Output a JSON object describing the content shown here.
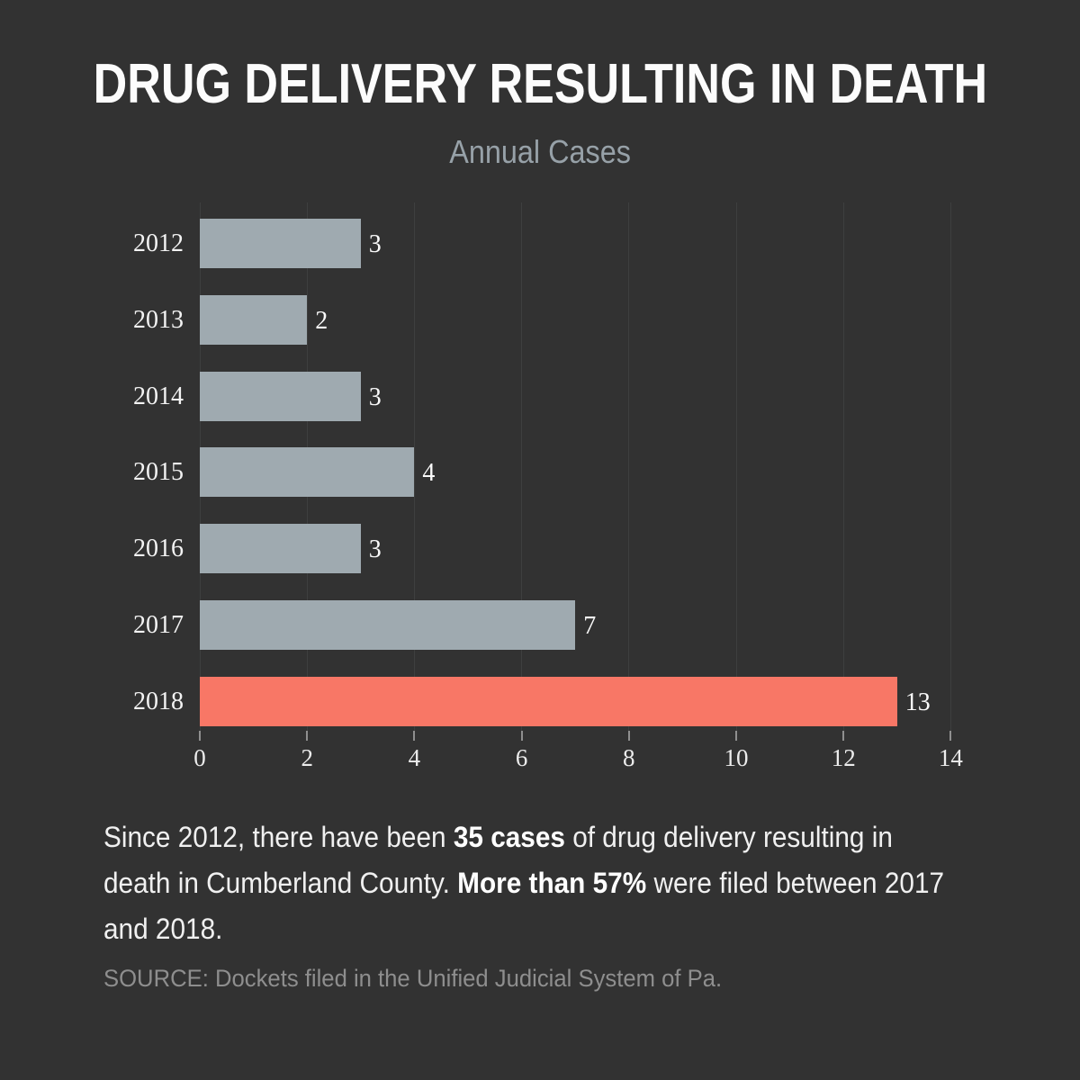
{
  "title": "DRUG DELIVERY RESULTING IN DEATH",
  "subtitle": "Annual Cases",
  "chart_data": {
    "type": "bar",
    "orientation": "horizontal",
    "title": "DRUG DELIVERY RESULTING IN DEATH",
    "subtitle": "Annual Cases",
    "categories": [
      "2012",
      "2013",
      "2014",
      "2015",
      "2016",
      "2017",
      "2018"
    ],
    "values": [
      3,
      2,
      3,
      4,
      3,
      7,
      13
    ],
    "value_labels": [
      "3",
      "2",
      "3",
      "4",
      "3",
      "7",
      "13"
    ],
    "highlight_index": 6,
    "xticks": [
      0,
      2,
      4,
      6,
      8,
      10,
      12,
      14
    ],
    "xlim": [
      0,
      14
    ],
    "grid": true,
    "legend": false,
    "bar_color": "#9faab0",
    "highlight_color": "#f87766"
  },
  "caption": {
    "lines": [
      [
        {
          "text": "Since 2012, there have been ",
          "bold": false
        },
        {
          "text": "35 cases",
          "bold": true
        },
        {
          "text": " of drug delivery resulting in",
          "bold": false
        }
      ],
      [
        {
          "text": "death in Cumberland County. ",
          "bold": false
        },
        {
          "text": "More than 57%",
          "bold": true
        },
        {
          "text": " were filed between 2017",
          "bold": false
        }
      ],
      [
        {
          "text": "and 2018.",
          "bold": false
        }
      ]
    ]
  },
  "source": "SOURCE: Dockets filed in the Unified Judicial System of Pa.",
  "colors": {
    "background": "#323232",
    "bar": "#9faab0",
    "highlight": "#f87766",
    "title_text": "#fcfcfc",
    "subtitle_text": "#97a1a8",
    "gridline": "#3e3f3f",
    "tick": "#8f8f8f",
    "axis_text": "#ececec",
    "year_text": "#f3f3f3",
    "value_text": "#fafafa",
    "caption_text": "#f0f0f0",
    "source_text": "#8e8e8e"
  }
}
